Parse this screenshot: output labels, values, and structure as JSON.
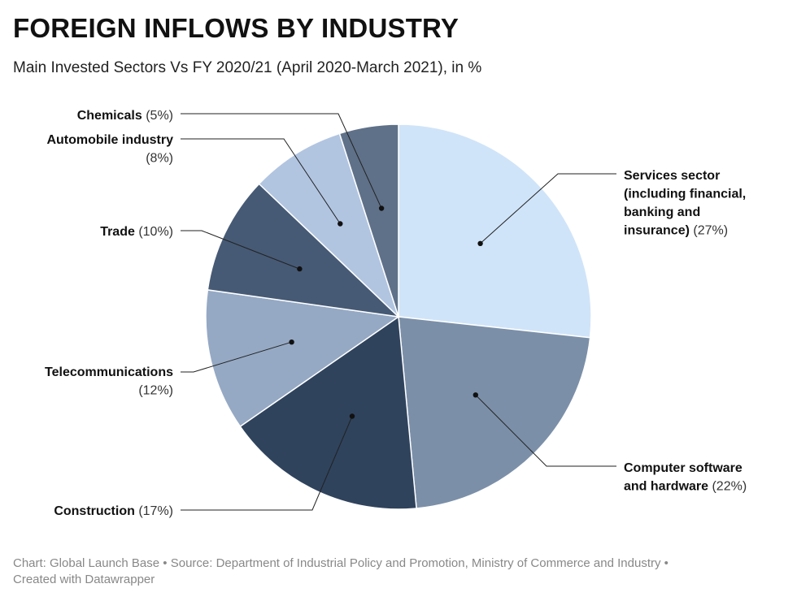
{
  "title": "FOREIGN INFLOWS BY INDUSTRY",
  "subtitle": "Main Invested Sectors Vs FY 2020/21 (April 2020-March 2021), in %",
  "footer": {
    "chart_by": "Chart: Global Launch Base",
    "separator": "•",
    "source": "Source: Department of Industrial Policy and Promotion, Ministry of Commerce and Industry",
    "created_with": "Created with Datawrapper"
  },
  "chart_data": {
    "type": "pie",
    "title": "FOREIGN INFLOWS BY INDUSTRY",
    "subtitle": "Main Invested Sectors Vs FY 2020/21 (April 2020-March 2021), in %",
    "unit": "%",
    "slices": [
      {
        "name": "Services sector (including financial, banking and insurance)",
        "value": 27,
        "color": "#d0e4f9",
        "label_lines": [
          "Services sector",
          "(including financial,",
          "banking and",
          "insurance)"
        ],
        "pct_text": "(27%)"
      },
      {
        "name": "Computer software and hardware",
        "value": 22,
        "color": "#7b8fa8",
        "label_lines": [
          "Computer software",
          "and hardware"
        ],
        "pct_text": "(22%)"
      },
      {
        "name": "Construction",
        "value": 17,
        "color": "#2f435d",
        "label_lines": [
          "Construction"
        ],
        "pct_text": "(17%)"
      },
      {
        "name": "Telecommunications",
        "value": 12,
        "color": "#95a9c4",
        "label_lines": [
          "Telecommunications"
        ],
        "pct_text": "(12%)"
      },
      {
        "name": "Trade",
        "value": 10,
        "color": "#465a75",
        "label_lines": [
          "Trade"
        ],
        "pct_text": "(10%)"
      },
      {
        "name": "Automobile industry",
        "value": 8,
        "color": "#b1c5e1",
        "label_lines": [
          "Automobile industry"
        ],
        "pct_text": "(8%)"
      },
      {
        "name": "Chemicals",
        "value": 5,
        "color": "#5f7189",
        "label_lines": [
          "Chemicals"
        ],
        "pct_text": "(5%)"
      }
    ]
  }
}
